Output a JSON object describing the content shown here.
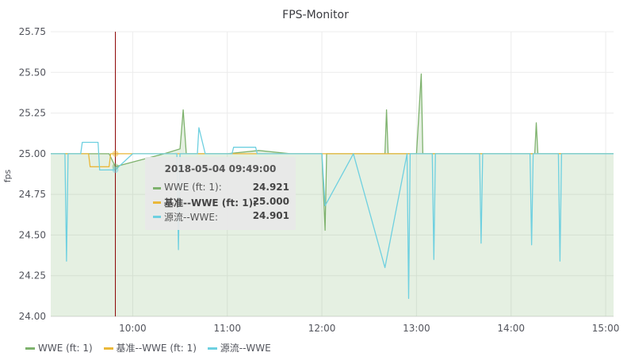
{
  "panel": {
    "title": "FPS-Monitor"
  },
  "chart_data": {
    "type": "line",
    "title": "FPS-Monitor",
    "xlabel": "",
    "ylabel": "fps",
    "ylim": [
      24.0,
      25.75
    ],
    "xlim": [
      "09:08",
      "15:05"
    ],
    "x_ticks": [
      "10:00",
      "11:00",
      "12:00",
      "13:00",
      "14:00",
      "15:00"
    ],
    "y_ticks": [
      "25.75",
      "25.50",
      "25.25",
      "25.00",
      "24.75",
      "24.50",
      "24.25",
      "24.00"
    ],
    "grid": true,
    "legend_position": "bottom-left",
    "series": [
      {
        "name": "WWE (ft: 1)",
        "color": "#7eb26d",
        "fill": true,
        "x": [
          "09:08",
          "09:30",
          "09:45",
          "09:49",
          "10:20",
          "10:30",
          "10:32",
          "10:34",
          "10:40",
          "11:00",
          "11:20",
          "11:40",
          "12:00",
          "12:02",
          "12:03",
          "12:05",
          "12:20",
          "12:40",
          "12:41",
          "12:42",
          "13:00",
          "13:03",
          "13:04",
          "13:05",
          "13:30",
          "14:00",
          "14:15",
          "14:16",
          "14:17",
          "14:40",
          "15:05"
        ],
        "values": [
          25.0,
          25.0,
          25.0,
          24.921,
          25.0,
          25.03,
          25.27,
          25.0,
          25.0,
          25.0,
          25.02,
          25.0,
          25.0,
          24.53,
          25.0,
          25.0,
          25.0,
          25.0,
          25.27,
          25.0,
          25.0,
          25.49,
          25.0,
          25.0,
          25.0,
          25.0,
          25.0,
          25.19,
          25.0,
          25.0,
          25.0
        ]
      },
      {
        "name": "基准--WWE (ft: 1)",
        "color": "#eab839",
        "fill": false,
        "x": [
          "09:08",
          "09:32",
          "09:33",
          "09:45",
          "09:46",
          "15:05"
        ],
        "values": [
          25.0,
          25.0,
          24.92,
          24.92,
          25.0,
          25.0
        ]
      },
      {
        "name": "源流--WWE",
        "color": "#6ed0e0",
        "fill": false,
        "x": [
          "09:08",
          "09:17",
          "09:18",
          "09:19",
          "09:27",
          "09:28",
          "09:38",
          "09:39",
          "09:49",
          "10:00",
          "10:28",
          "10:29",
          "10:30",
          "10:41",
          "10:42",
          "10:46",
          "11:03",
          "11:04",
          "11:18",
          "11:19",
          "12:00",
          "12:02",
          "12:20",
          "12:40",
          "12:54",
          "12:55",
          "12:56",
          "13:00",
          "13:10",
          "13:11",
          "13:12",
          "13:40",
          "13:41",
          "13:42",
          "14:12",
          "14:13",
          "14:14",
          "14:30",
          "14:31",
          "14:32",
          "15:05"
        ],
        "values": [
          25.0,
          25.0,
          24.34,
          25.0,
          25.0,
          25.07,
          25.07,
          24.9,
          24.901,
          25.0,
          25.0,
          24.41,
          25.0,
          25.0,
          25.16,
          25.0,
          25.0,
          25.04,
          25.04,
          25.0,
          25.0,
          24.68,
          25.0,
          24.3,
          25.0,
          24.11,
          25.0,
          25.0,
          25.0,
          24.35,
          25.0,
          25.0,
          24.45,
          25.0,
          25.0,
          24.44,
          25.0,
          25.0,
          24.34,
          25.0,
          25.0
        ]
      }
    ],
    "crosshair": "09:49"
  },
  "tooltip": {
    "time": "2018-05-04 09:49:00",
    "rows": [
      {
        "name": "WWE (ft: 1):",
        "value": "24.921",
        "color": "#7eb26d"
      },
      {
        "name": "基准--WWE (ft: 1):",
        "value": "25.000",
        "color": "#eab839"
      },
      {
        "name": "源流--WWE:",
        "value": "24.901",
        "color": "#6ed0e0"
      }
    ]
  },
  "legend": [
    {
      "label": "WWE (ft: 1)",
      "color": "#7eb26d"
    },
    {
      "label": "基准--WWE (ft: 1)",
      "color": "#eab839"
    },
    {
      "label": "源流--WWE",
      "color": "#6ed0e0"
    }
  ]
}
